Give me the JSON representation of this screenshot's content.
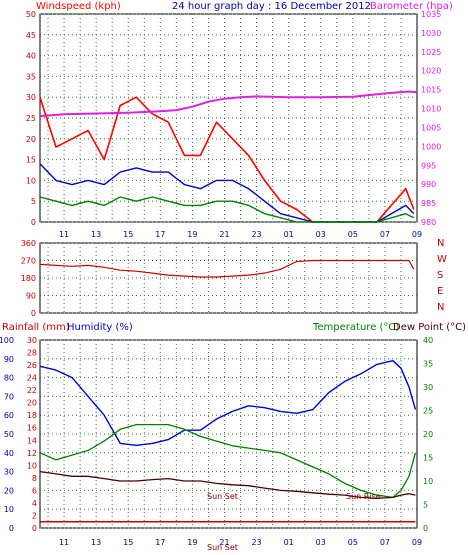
{
  "header": {
    "left_title": "Windspeed (kph)",
    "center_title": "24 hour graph day : 16 December 2012",
    "right_title": "Barometer (hpa)"
  },
  "colors": {
    "background": "#ffffff",
    "frame": "#000000",
    "grid": "#2e7d32",
    "windspeed": "#ff0000",
    "windavg": "#0000cc",
    "windgust_base": "#008000",
    "barometer": "#e020e0",
    "direction": "#cc0000",
    "humidity": "#0000dd",
    "temperature": "#008000",
    "dewpoint": "#4a0000",
    "rainfall": "#cc0000",
    "axis_blue": "#0000aa",
    "axis_red": "#cc0000",
    "axis_green": "#008000"
  },
  "chart_data": [
    {
      "type": "line",
      "panel": "wind-and-pressure",
      "x_tick_labels": [
        "11",
        "13",
        "15",
        "17",
        "19",
        "21",
        "23",
        "01",
        "03",
        "05",
        "07",
        "09"
      ],
      "y_left_ticks": [
        "0",
        "5",
        "10",
        "15",
        "20",
        "25",
        "30",
        "35",
        "40",
        "45",
        "50"
      ],
      "y_right_ticks": [
        "980",
        "985",
        "990",
        "995",
        "1000",
        "1005",
        "1010",
        "1015",
        "1020",
        "1025",
        "1030",
        "1035"
      ],
      "ylim_left": [
        0,
        50
      ],
      "ylim_right": [
        980,
        1035
      ],
      "grid": true,
      "series": [
        {
          "key": "windspeed",
          "x": [
            9.5,
            10.5,
            11.5,
            12.5,
            13.5,
            14.5,
            15.5,
            16.5,
            17.5,
            18.5,
            19.5,
            20.5,
            21.5,
            22.5,
            23.5,
            24.5,
            25.5,
            26.5,
            30.5,
            32.3,
            32.8
          ],
          "y": [
            30,
            18,
            20,
            22,
            15,
            28,
            30,
            26,
            24,
            16,
            16,
            24,
            20,
            16,
            10,
            5,
            3,
            0,
            0,
            8,
            3
          ]
        },
        {
          "key": "windavg",
          "x": [
            9.5,
            10.5,
            11.5,
            12.5,
            13.5,
            14.5,
            15.5,
            16.5,
            17.5,
            18.5,
            19.5,
            20.5,
            21.5,
            22.5,
            23.5,
            24.5,
            25.5,
            26.5,
            30.5,
            32.3,
            32.8
          ],
          "y": [
            14,
            10,
            9,
            10,
            9,
            12,
            13,
            12,
            12,
            9,
            8,
            10,
            10,
            8,
            5,
            2,
            1,
            0,
            0,
            4,
            2
          ]
        },
        {
          "key": "windgust_base",
          "x": [
            9.5,
            10.5,
            11.5,
            12.5,
            13.5,
            14.5,
            15.5,
            16.5,
            17.5,
            18.5,
            19.5,
            20.5,
            21.5,
            22.5,
            23.5,
            24.5,
            25.5,
            26.5,
            30.5,
            32.3,
            32.8
          ],
          "y": [
            6,
            5,
            4,
            5,
            4,
            6,
            5,
            6,
            5,
            4,
            4,
            5,
            5,
            4,
            2,
            1,
            0,
            0,
            0,
            2,
            1
          ]
        },
        {
          "key": "barometer",
          "axis": "right",
          "x": [
            9.5,
            11,
            13,
            15,
            17,
            18,
            19,
            20,
            21,
            22,
            23,
            25,
            27,
            29,
            31,
            32.5,
            33
          ],
          "y": [
            1008.0,
            1008.5,
            1008.7,
            1008.9,
            1009.3,
            1009.6,
            1010.5,
            1011.8,
            1012.6,
            1013.0,
            1013.2,
            1013.0,
            1013.0,
            1013.1,
            1014.0,
            1014.5,
            1014.3
          ]
        }
      ]
    },
    {
      "type": "line",
      "panel": "wind-direction",
      "y_ticks": [
        "0",
        "90",
        "180",
        "270",
        "360"
      ],
      "ylim": [
        0,
        360
      ],
      "compass_labels": [
        "N",
        "W",
        "S",
        "E",
        "N"
      ],
      "series": [
        {
          "key": "direction",
          "x": [
            9.5,
            10.5,
            11.5,
            12.5,
            13.5,
            14.5,
            15.5,
            16.5,
            17.5,
            18.5,
            19.5,
            20.5,
            21.5,
            22.5,
            23.5,
            24.5,
            25.5,
            26.5,
            28,
            30,
            32.5,
            32.8
          ],
          "y": [
            250,
            245,
            240,
            245,
            235,
            220,
            215,
            205,
            195,
            190,
            185,
            185,
            190,
            195,
            205,
            225,
            265,
            270,
            270,
            270,
            270,
            225
          ]
        }
      ]
    },
    {
      "type": "line",
      "panel": "rain-humidity-temperature",
      "left_title_rain": "Rainfall (mm)",
      "left_title_humidity": "Humidity (%)",
      "right_title_temperature": "Temperature (°C)",
      "right_title_dewpoint": "Dew Point (°C)",
      "humidity_ticks": [
        "0",
        "10",
        "20",
        "30",
        "40",
        "50",
        "60",
        "70",
        "80",
        "90",
        "100"
      ],
      "rain_ticks": [
        "0",
        "2",
        "4",
        "6",
        "8",
        "10",
        "12",
        "14",
        "16",
        "18",
        "20",
        "22",
        "24",
        "26",
        "28",
        "30"
      ],
      "temp_ticks": [
        "0",
        "5",
        "10",
        "15",
        "20",
        "25",
        "30",
        "35",
        "40"
      ],
      "ylim_humidity": [
        0,
        100
      ],
      "ylim_temperature": [
        0,
        40
      ],
      "annotations": [
        "Sun Set",
        "Sun Rise",
        "Sun Set"
      ],
      "series": [
        {
          "key": "humidity",
          "axis": "humidity",
          "x": [
            9.5,
            10.5,
            11.5,
            12.5,
            13.5,
            14.5,
            15.5,
            16.5,
            17.5,
            18.5,
            19.5,
            20.5,
            21.5,
            22.5,
            23.5,
            24.5,
            25.5,
            26.5,
            27.5,
            28.5,
            29.5,
            30.5,
            31.5,
            32.0,
            32.5,
            32.9
          ],
          "y": [
            86,
            84,
            80,
            70,
            60,
            45,
            44,
            45,
            47,
            52,
            52,
            58,
            62,
            65,
            64,
            62,
            61,
            63,
            72,
            78,
            82,
            87,
            89,
            85,
            75,
            63
          ]
        },
        {
          "key": "temperature",
          "axis": "temperature",
          "x": [
            9.5,
            10.5,
            11.5,
            12.5,
            13.5,
            14.5,
            15.5,
            16.5,
            17.5,
            18.5,
            19.5,
            20.5,
            21.5,
            22.5,
            23.5,
            24.5,
            25.5,
            26.5,
            27.5,
            28.5,
            29.5,
            30.5,
            31.5,
            32.0,
            32.5,
            32.9
          ],
          "y": [
            16,
            14.5,
            15.5,
            16.5,
            18.5,
            21,
            22,
            22,
            22,
            21,
            19.5,
            18.5,
            17.5,
            17,
            16.5,
            16,
            14.5,
            13,
            11.5,
            9.5,
            8,
            7,
            6.5,
            8,
            11,
            16
          ]
        },
        {
          "key": "dewpoint",
          "axis": "temperature",
          "x": [
            9.5,
            10.5,
            11.5,
            12.5,
            13.5,
            14.5,
            15.5,
            16.5,
            17.5,
            18.5,
            19.5,
            20.5,
            21.5,
            22.5,
            23.5,
            24.5,
            25.5,
            26.5,
            27.5,
            28.5,
            29.5,
            30.5,
            31.5,
            32.0,
            32.5,
            32.9
          ],
          "y": [
            12,
            11.5,
            11,
            11,
            10.5,
            10,
            10,
            10.3,
            10.5,
            10,
            10,
            9.5,
            9.2,
            9,
            8.5,
            8,
            7.8,
            7.5,
            7.2,
            7,
            6.5,
            6.3,
            6.5,
            7,
            7.3,
            7
          ]
        },
        {
          "key": "rainfall",
          "axis": "rain",
          "x": [
            9.5,
            32.9
          ],
          "y": [
            1,
            1
          ]
        }
      ]
    }
  ]
}
